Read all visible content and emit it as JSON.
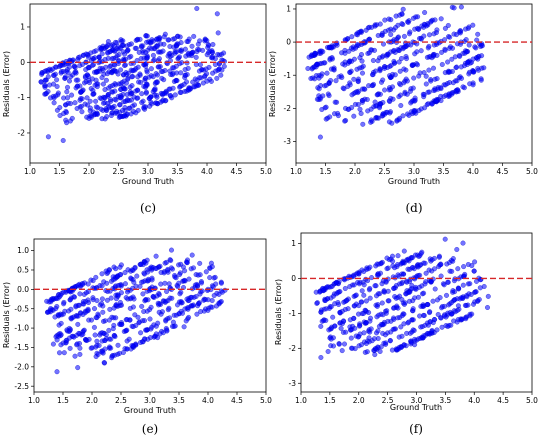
{
  "chart_data": [
    {
      "id": "c",
      "type": "scatter",
      "caption": "(c)",
      "xlabel": "Ground Truth",
      "ylabel": "Residuals (Error)",
      "xlim": [
        1.0,
        5.0
      ],
      "ylim": [
        -2.85,
        1.65
      ],
      "xticks": [
        "1.0",
        "1.5",
        "2.0",
        "2.5",
        "3.0",
        "3.5",
        "4.0",
        "4.5",
        "5.0"
      ],
      "yticks": [
        "-2",
        "-1",
        "0",
        "1"
      ],
      "reference_line": {
        "y": 0,
        "color": "#d62728",
        "style": "dashed"
      },
      "point_color": "#0000ff",
      "bands": [
        {
          "intercept": -1.15,
          "x_range": [
            1.15,
            2.6
          ]
        },
        {
          "intercept": -1.35,
          "x_range": [
            1.15,
            3.0
          ]
        },
        {
          "intercept": -1.55,
          "x_range": [
            1.2,
            3.3
          ]
        },
        {
          "intercept": -1.75,
          "x_range": [
            1.25,
            3.6
          ]
        },
        {
          "intercept": -1.95,
          "x_range": [
            1.3,
            3.8
          ]
        },
        {
          "intercept": -2.15,
          "x_range": [
            1.35,
            4.0
          ]
        },
        {
          "intercept": -2.35,
          "x_range": [
            1.4,
            4.1
          ]
        },
        {
          "intercept": -2.55,
          "x_range": [
            1.5,
            4.2
          ]
        },
        {
          "intercept": -2.75,
          "x_range": [
            1.6,
            4.3
          ]
        },
        {
          "intercept": -2.95,
          "x_range": [
            1.9,
            4.3
          ]
        },
        {
          "intercept": -3.15,
          "x_range": [
            2.2,
            4.3
          ]
        },
        {
          "intercept": -3.35,
          "x_range": [
            2.5,
            4.3
          ]
        }
      ],
      "slope": 0.7
    },
    {
      "id": "d",
      "type": "scatter",
      "caption": "(d)",
      "xlabel": "Ground Truth",
      "ylabel": "Residuals (Error)",
      "xlim": [
        1.0,
        5.0
      ],
      "ylim": [
        -3.65,
        1.15
      ],
      "xticks": [
        "1.0",
        "1.5",
        "2.0",
        "2.5",
        "3.0",
        "3.5",
        "4.0",
        "4.5",
        "5.0"
      ],
      "yticks": [
        "-3",
        "-2",
        "-1",
        "0",
        "1"
      ],
      "reference_line": {
        "y": 0,
        "color": "#d62728",
        "style": "dashed"
      },
      "point_color": "#0000ff",
      "bands": [
        {
          "intercept": -1.5,
          "x_range": [
            1.2,
            2.8
          ]
        },
        {
          "intercept": -1.85,
          "x_range": [
            1.2,
            3.2
          ]
        },
        {
          "intercept": -2.2,
          "x_range": [
            1.25,
            3.5
          ]
        },
        {
          "intercept": -2.55,
          "x_range": [
            1.3,
            3.8
          ]
        },
        {
          "intercept": -2.9,
          "x_range": [
            1.35,
            4.0
          ]
        },
        {
          "intercept": -3.25,
          "x_range": [
            1.4,
            4.1
          ]
        },
        {
          "intercept": -3.6,
          "x_range": [
            1.5,
            4.2
          ]
        },
        {
          "intercept": -3.95,
          "x_range": [
            1.8,
            4.2
          ]
        },
        {
          "intercept": -4.3,
          "x_range": [
            2.1,
            4.2
          ]
        },
        {
          "intercept": -4.65,
          "x_range": [
            2.5,
            4.2
          ]
        }
      ],
      "slope": 0.85
    },
    {
      "id": "e",
      "type": "scatter",
      "caption": "(e)",
      "xlabel": "Ground Truth",
      "ylabel": "Residuals (Error)",
      "xlim": [
        1.0,
        5.0
      ],
      "ylim": [
        -2.65,
        1.3
      ],
      "xticks": [
        "1.0",
        "1.5",
        "2.0",
        "2.5",
        "3.0",
        "3.5",
        "4.0",
        "4.5",
        "5.0"
      ],
      "yticks": [
        "-2.5",
        "-2.0",
        "-1.5",
        "-1.0",
        "-0.5",
        "0.0",
        "0.5",
        "1.0"
      ],
      "reference_line": {
        "y": 0,
        "color": "#d62728",
        "style": "dashed"
      },
      "point_color": "#0000ff",
      "bands": [
        {
          "intercept": -1.25,
          "x_range": [
            1.2,
            2.6
          ]
        },
        {
          "intercept": -1.5,
          "x_range": [
            1.2,
            3.0
          ]
        },
        {
          "intercept": -1.75,
          "x_range": [
            1.25,
            3.4
          ]
        },
        {
          "intercept": -2.0,
          "x_range": [
            1.3,
            3.7
          ]
        },
        {
          "intercept": -2.25,
          "x_range": [
            1.35,
            3.9
          ]
        },
        {
          "intercept": -2.5,
          "x_range": [
            1.4,
            4.05
          ]
        },
        {
          "intercept": -2.75,
          "x_range": [
            1.5,
            4.15
          ]
        },
        {
          "intercept": -3.0,
          "x_range": [
            1.7,
            4.25
          ]
        },
        {
          "intercept": -3.25,
          "x_range": [
            2.0,
            4.3
          ]
        },
        {
          "intercept": -3.5,
          "x_range": [
            2.3,
            4.3
          ]
        }
      ],
      "slope": 0.75
    },
    {
      "id": "f",
      "type": "scatter",
      "caption": "(f)",
      "xlabel": "Ground Truth",
      "ylabel": "Residuals (Error)",
      "xlim": [
        1.0,
        5.0
      ],
      "ylim": [
        -3.25,
        1.3
      ],
      "xticks": [
        "1.0",
        "1.5",
        "2.0",
        "2.5",
        "3.0",
        "3.5",
        "4.0",
        "4.5",
        "5.0"
      ],
      "yticks": [
        "-3",
        "-2",
        "-1",
        "0",
        "1"
      ],
      "reference_line": {
        "y": 0,
        "color": "#d62728",
        "style": "dashed"
      },
      "point_color": "#0000ff",
      "bands": [
        {
          "intercept": -1.4,
          "x_range": [
            1.25,
            2.8
          ]
        },
        {
          "intercept": -1.7,
          "x_range": [
            1.25,
            3.1
          ]
        },
        {
          "intercept": -2.0,
          "x_range": [
            1.3,
            3.4
          ]
        },
        {
          "intercept": -2.3,
          "x_range": [
            1.35,
            3.7
          ]
        },
        {
          "intercept": -2.6,
          "x_range": [
            1.4,
            3.9
          ]
        },
        {
          "intercept": -2.9,
          "x_range": [
            1.45,
            4.05
          ]
        },
        {
          "intercept": -3.2,
          "x_range": [
            1.55,
            4.15
          ]
        },
        {
          "intercept": -3.5,
          "x_range": [
            1.8,
            4.25
          ]
        },
        {
          "intercept": -3.8,
          "x_range": [
            2.1,
            4.25
          ]
        },
        {
          "intercept": -4.1,
          "x_range": [
            2.5,
            4.25
          ]
        }
      ],
      "slope": 0.78
    }
  ]
}
